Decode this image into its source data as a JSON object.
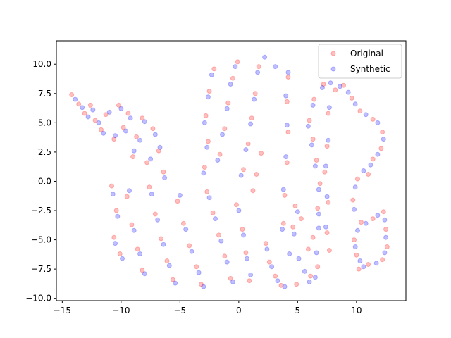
{
  "chart_data": {
    "type": "scatter",
    "title": "",
    "xlabel": "",
    "ylabel": "",
    "xlim": [
      -15.5,
      14.2
    ],
    "ylim": [
      -10.2,
      12.0
    ],
    "xticks": [
      -15,
      -10,
      -5,
      0,
      5,
      10
    ],
    "yticks": [
      -10.0,
      -7.5,
      -5.0,
      -2.5,
      0.0,
      2.5,
      5.0,
      7.5,
      10.0
    ],
    "xtick_labels": [
      "−15",
      "−10",
      "−5",
      "0",
      "5",
      "10"
    ],
    "ytick_labels": [
      "−10.0",
      "−7.5",
      "−5.0",
      "−2.5",
      "0.0",
      "2.5",
      "5.0",
      "7.5",
      "10.0"
    ],
    "grid": false,
    "legend_position": "top-right",
    "series": [
      {
        "name": "Original",
        "color": "#ff0000",
        "alpha": 0.25,
        "points": [
          [
            -14.2,
            7.4
          ],
          [
            -13.6,
            6.6
          ],
          [
            -13.1,
            5.8
          ],
          [
            -12.6,
            6.5
          ],
          [
            -12.2,
            5.2
          ],
          [
            -11.7,
            4.4
          ],
          [
            -11.3,
            5.7
          ],
          [
            -10.6,
            3.6
          ],
          [
            -10.2,
            6.5
          ],
          [
            -9.8,
            4.6
          ],
          [
            -9.4,
            5.8
          ],
          [
            -9.0,
            2.1
          ],
          [
            -8.7,
            3.8
          ],
          [
            -8.2,
            5.4
          ],
          [
            -7.8,
            1.6
          ],
          [
            -7.3,
            4.5
          ],
          [
            -6.8,
            2.6
          ],
          [
            -6.4,
            0.8
          ],
          [
            -10.8,
            -0.4
          ],
          [
            -10.4,
            -2.5
          ],
          [
            -10.6,
            -4.8
          ],
          [
            -10.1,
            -6.2
          ],
          [
            -9.5,
            -1.3
          ],
          [
            -9.1,
            -3.7
          ],
          [
            -8.6,
            -5.8
          ],
          [
            -8.2,
            -7.6
          ],
          [
            -7.6,
            -0.5
          ],
          [
            -7.1,
            -2.8
          ],
          [
            -6.6,
            -4.9
          ],
          [
            -6.1,
            -6.8
          ],
          [
            -5.6,
            -8.4
          ],
          [
            -5.2,
            -1.7
          ],
          [
            -4.7,
            -3.6
          ],
          [
            -4.2,
            -5.5
          ],
          [
            -3.6,
            -7.3
          ],
          [
            -3.2,
            -8.8
          ],
          [
            -2.7,
            -0.9
          ],
          [
            -2.2,
            -2.7
          ],
          [
            -1.7,
            -4.6
          ],
          [
            -1.2,
            -6.4
          ],
          [
            -0.7,
            -8.3
          ],
          [
            -0.2,
            -2.0
          ],
          [
            0.3,
            -4.1
          ],
          [
            0.6,
            -6.1
          ],
          [
            0.9,
            -8.5
          ],
          [
            -2.9,
            1.2
          ],
          [
            -2.6,
            3.4
          ],
          [
            -2.8,
            5.6
          ],
          [
            -2.5,
            7.7
          ],
          [
            -2.1,
            9.6
          ],
          [
            -1.6,
            2.3
          ],
          [
            -1.2,
            4.5
          ],
          [
            -0.9,
            6.7
          ],
          [
            -0.5,
            8.8
          ],
          [
            -0.1,
            10.2
          ],
          [
            0.4,
            1.0
          ],
          [
            0.8,
            3.2
          ],
          [
            1.1,
            5.4
          ],
          [
            1.4,
            7.5
          ],
          [
            1.7,
            9.8
          ],
          [
            1.2,
            -0.8
          ],
          [
            1.5,
            0.6
          ],
          [
            1.9,
            2.4
          ],
          [
            2.3,
            -5.3
          ],
          [
            2.6,
            -6.9
          ],
          [
            3.1,
            -8.1
          ],
          [
            3.6,
            -8.9
          ],
          [
            3.8,
            -3.6
          ],
          [
            3.9,
            -1.2
          ],
          [
            4.1,
            1.6
          ],
          [
            4.2,
            4.2
          ],
          [
            4.1,
            6.8
          ],
          [
            4.2,
            8.9
          ],
          [
            4.6,
            -3.9
          ],
          [
            4.8,
            -2.1
          ],
          [
            5.3,
            -3.2
          ],
          [
            5.9,
            -5.8
          ],
          [
            6.3,
            -4.8
          ],
          [
            4.9,
            -8.8
          ],
          [
            6.1,
            -8.1
          ],
          [
            6.7,
            -7.3
          ],
          [
            6.7,
            -2.3
          ],
          [
            6.9,
            -0.2
          ],
          [
            6.6,
            1.8
          ],
          [
            6.3,
            3.6
          ],
          [
            6.0,
            5.2
          ],
          [
            6.4,
            7.0
          ],
          [
            7.2,
            8.3
          ],
          [
            7.6,
            5.8
          ],
          [
            7.5,
            3.0
          ],
          [
            7.3,
            0.8
          ],
          [
            7.6,
            -1.8
          ],
          [
            7.5,
            -4.4
          ],
          [
            7.7,
            -5.9
          ],
          [
            8.2,
            7.8
          ],
          [
            8.9,
            8.2
          ],
          [
            9.6,
            7.1
          ],
          [
            10.3,
            6.0
          ],
          [
            11.4,
            5.3
          ],
          [
            12.2,
            4.2
          ],
          [
            12.1,
            2.8
          ],
          [
            11.4,
            1.9
          ],
          [
            11.0,
            0.6
          ],
          [
            10.1,
            0.2
          ],
          [
            9.7,
            -1.6
          ],
          [
            10.4,
            -3.5
          ],
          [
            11.4,
            -3.2
          ],
          [
            12.3,
            -2.6
          ],
          [
            12.5,
            -4.1
          ],
          [
            12.6,
            -5.6
          ],
          [
            12.2,
            -6.7
          ],
          [
            11.0,
            -7.1
          ],
          [
            10.2,
            -7.5
          ],
          [
            9.8,
            -5.0
          ],
          [
            10.0,
            -6.3
          ]
        ]
      },
      {
        "name": "Synthetic",
        "color": "#0000ff",
        "alpha": 0.25,
        "points": [
          [
            -13.9,
            7.0
          ],
          [
            -13.3,
            6.3
          ],
          [
            -12.8,
            5.5
          ],
          [
            -12.4,
            6.1
          ],
          [
            -11.9,
            5.0
          ],
          [
            -11.5,
            4.1
          ],
          [
            -11.0,
            5.9
          ],
          [
            -10.5,
            3.9
          ],
          [
            -10.0,
            6.2
          ],
          [
            -9.6,
            4.3
          ],
          [
            -9.2,
            5.4
          ],
          [
            -8.9,
            2.6
          ],
          [
            -8.4,
            3.5
          ],
          [
            -8.0,
            5.1
          ],
          [
            -7.5,
            1.9
          ],
          [
            -7.1,
            4.0
          ],
          [
            -6.7,
            2.9
          ],
          [
            -6.3,
            0.3
          ],
          [
            -10.7,
            -1.1
          ],
          [
            -10.3,
            -3.0
          ],
          [
            -10.5,
            -5.3
          ],
          [
            -9.9,
            -6.6
          ],
          [
            -9.3,
            -0.8
          ],
          [
            -8.9,
            -4.2
          ],
          [
            -8.4,
            -6.2
          ],
          [
            -8.0,
            -7.9
          ],
          [
            -7.4,
            -1.1
          ],
          [
            -6.9,
            -3.3
          ],
          [
            -6.4,
            -5.4
          ],
          [
            -5.9,
            -7.2
          ],
          [
            -5.4,
            -8.7
          ],
          [
            -5.0,
            -1.2
          ],
          [
            -4.5,
            -4.1
          ],
          [
            -4.0,
            -6.0
          ],
          [
            -3.4,
            -7.8
          ],
          [
            -3.0,
            -9.0
          ],
          [
            -2.5,
            -1.4
          ],
          [
            -2.0,
            -3.2
          ],
          [
            -1.5,
            -5.1
          ],
          [
            -1.0,
            -6.9
          ],
          [
            -0.5,
            -8.6
          ],
          [
            0.0,
            -2.5
          ],
          [
            0.4,
            -4.6
          ],
          [
            0.7,
            -6.6
          ],
          [
            1.0,
            -8.0
          ],
          [
            -3.0,
            0.7
          ],
          [
            -2.7,
            2.9
          ],
          [
            -2.9,
            5.0
          ],
          [
            -2.6,
            7.2
          ],
          [
            -2.3,
            9.1
          ],
          [
            -1.8,
            1.8
          ],
          [
            -1.4,
            4.0
          ],
          [
            -1.0,
            6.2
          ],
          [
            -0.7,
            8.3
          ],
          [
            -0.3,
            9.8
          ],
          [
            0.2,
            0.5
          ],
          [
            0.6,
            2.7
          ],
          [
            1.0,
            4.9
          ],
          [
            1.3,
            7.0
          ],
          [
            1.6,
            9.3
          ],
          [
            2.2,
            10.6
          ],
          [
            3.1,
            9.8
          ],
          [
            4.2,
            9.3
          ],
          [
            2.4,
            -5.8
          ],
          [
            2.8,
            -7.3
          ],
          [
            3.3,
            -8.5
          ],
          [
            3.9,
            -9.0
          ],
          [
            3.7,
            -4.1
          ],
          [
            3.8,
            -0.7
          ],
          [
            4.0,
            2.1
          ],
          [
            4.1,
            4.8
          ],
          [
            4.0,
            7.3
          ],
          [
            4.3,
            -6.2
          ],
          [
            4.7,
            -4.5
          ],
          [
            5.0,
            -2.6
          ],
          [
            5.1,
            -6.6
          ],
          [
            5.6,
            -7.7
          ],
          [
            6.0,
            -8.6
          ],
          [
            6.6,
            -6.1
          ],
          [
            6.8,
            -4.0
          ],
          [
            6.5,
            -8.2
          ],
          [
            6.8,
            -2.8
          ],
          [
            6.8,
            -0.7
          ],
          [
            6.5,
            1.3
          ],
          [
            6.2,
            3.1
          ],
          [
            5.9,
            4.7
          ],
          [
            6.3,
            6.5
          ],
          [
            7.1,
            8.0
          ],
          [
            7.7,
            6.3
          ],
          [
            7.6,
            3.5
          ],
          [
            7.4,
            1.3
          ],
          [
            7.5,
            -1.3
          ],
          [
            7.4,
            -3.9
          ],
          [
            7.8,
            8.4
          ],
          [
            8.6,
            8.1
          ],
          [
            9.3,
            7.6
          ],
          [
            9.9,
            6.6
          ],
          [
            10.8,
            5.7
          ],
          [
            11.8,
            5.0
          ],
          [
            12.3,
            3.6
          ],
          [
            11.8,
            2.3
          ],
          [
            11.2,
            1.4
          ],
          [
            10.6,
            0.9
          ],
          [
            9.9,
            -0.5
          ],
          [
            9.8,
            -2.4
          ],
          [
            10.8,
            -3.6
          ],
          [
            11.8,
            -2.9
          ],
          [
            12.4,
            -3.3
          ],
          [
            12.5,
            -4.8
          ],
          [
            12.4,
            -6.1
          ],
          [
            11.7,
            -7.0
          ],
          [
            10.6,
            -7.3
          ],
          [
            9.9,
            -5.6
          ],
          [
            10.1,
            -4.2
          ],
          [
            10.3,
            -6.8
          ]
        ]
      }
    ]
  }
}
